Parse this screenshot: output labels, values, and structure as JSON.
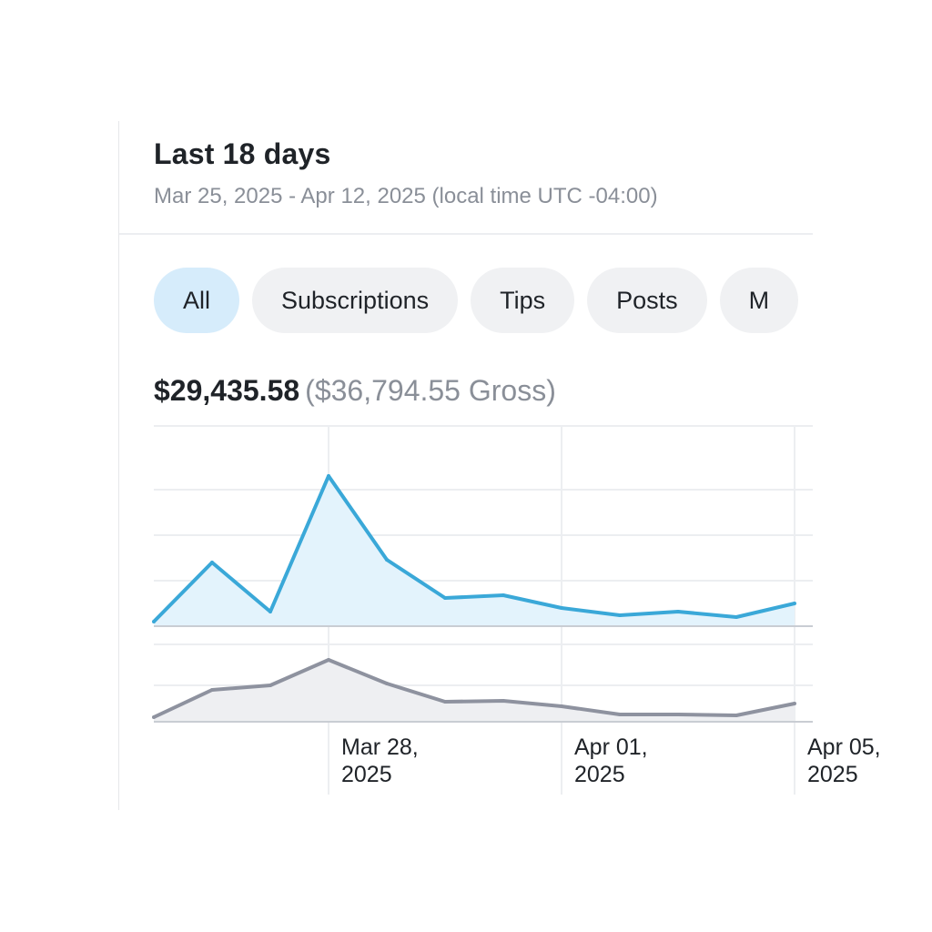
{
  "summary": {
    "title": "Last 18 days",
    "subtitle": "Mar 25, 2025 - Apr 12, 2025 (local time UTC -04:00)",
    "net": "$29,435.58",
    "gross": "($36,794.55 Gross)"
  },
  "tabs": [
    {
      "label": "All",
      "active": true
    },
    {
      "label": "Subscriptions",
      "active": false
    },
    {
      "label": "Tips",
      "active": false
    },
    {
      "label": "Posts",
      "active": false
    },
    {
      "label": "M",
      "active": false
    }
  ],
  "colors": {
    "net_line": "#3aa8d8",
    "net_fill": "#e3f3fc",
    "gross_line": "#8e929f",
    "gross_fill": "#eeeff2",
    "grid": "#eceef1"
  },
  "chart_data": {
    "type": "area",
    "x": [
      "2025-03-25",
      "2025-03-26",
      "2025-03-27",
      "2025-03-28",
      "2025-03-29",
      "2025-03-30",
      "2025-03-31",
      "2025-04-01",
      "2025-04-02",
      "2025-04-03",
      "2025-04-04",
      "2025-04-05"
    ],
    "series": [
      {
        "values": [
          0.05,
          0.7,
          0.16,
          1.65,
          0.73,
          0.31,
          0.34,
          0.2,
          0.12,
          0.16,
          0.1,
          0.25
        ]
      },
      {
        "values": [
          0.05,
          0.35,
          0.4,
          0.68,
          0.42,
          0.22,
          0.23,
          0.17,
          0.08,
          0.08,
          0.07,
          0.2
        ]
      }
    ],
    "tick_labels": [
      {
        "x": "2025-03-28",
        "line1": "Mar 28,",
        "line2": "2025"
      },
      {
        "x": "2025-04-01",
        "line1": "Apr 01,",
        "line2": "2025"
      },
      {
        "x": "2025-04-05",
        "line1": "Apr 05,",
        "line2": "2025"
      }
    ]
  }
}
